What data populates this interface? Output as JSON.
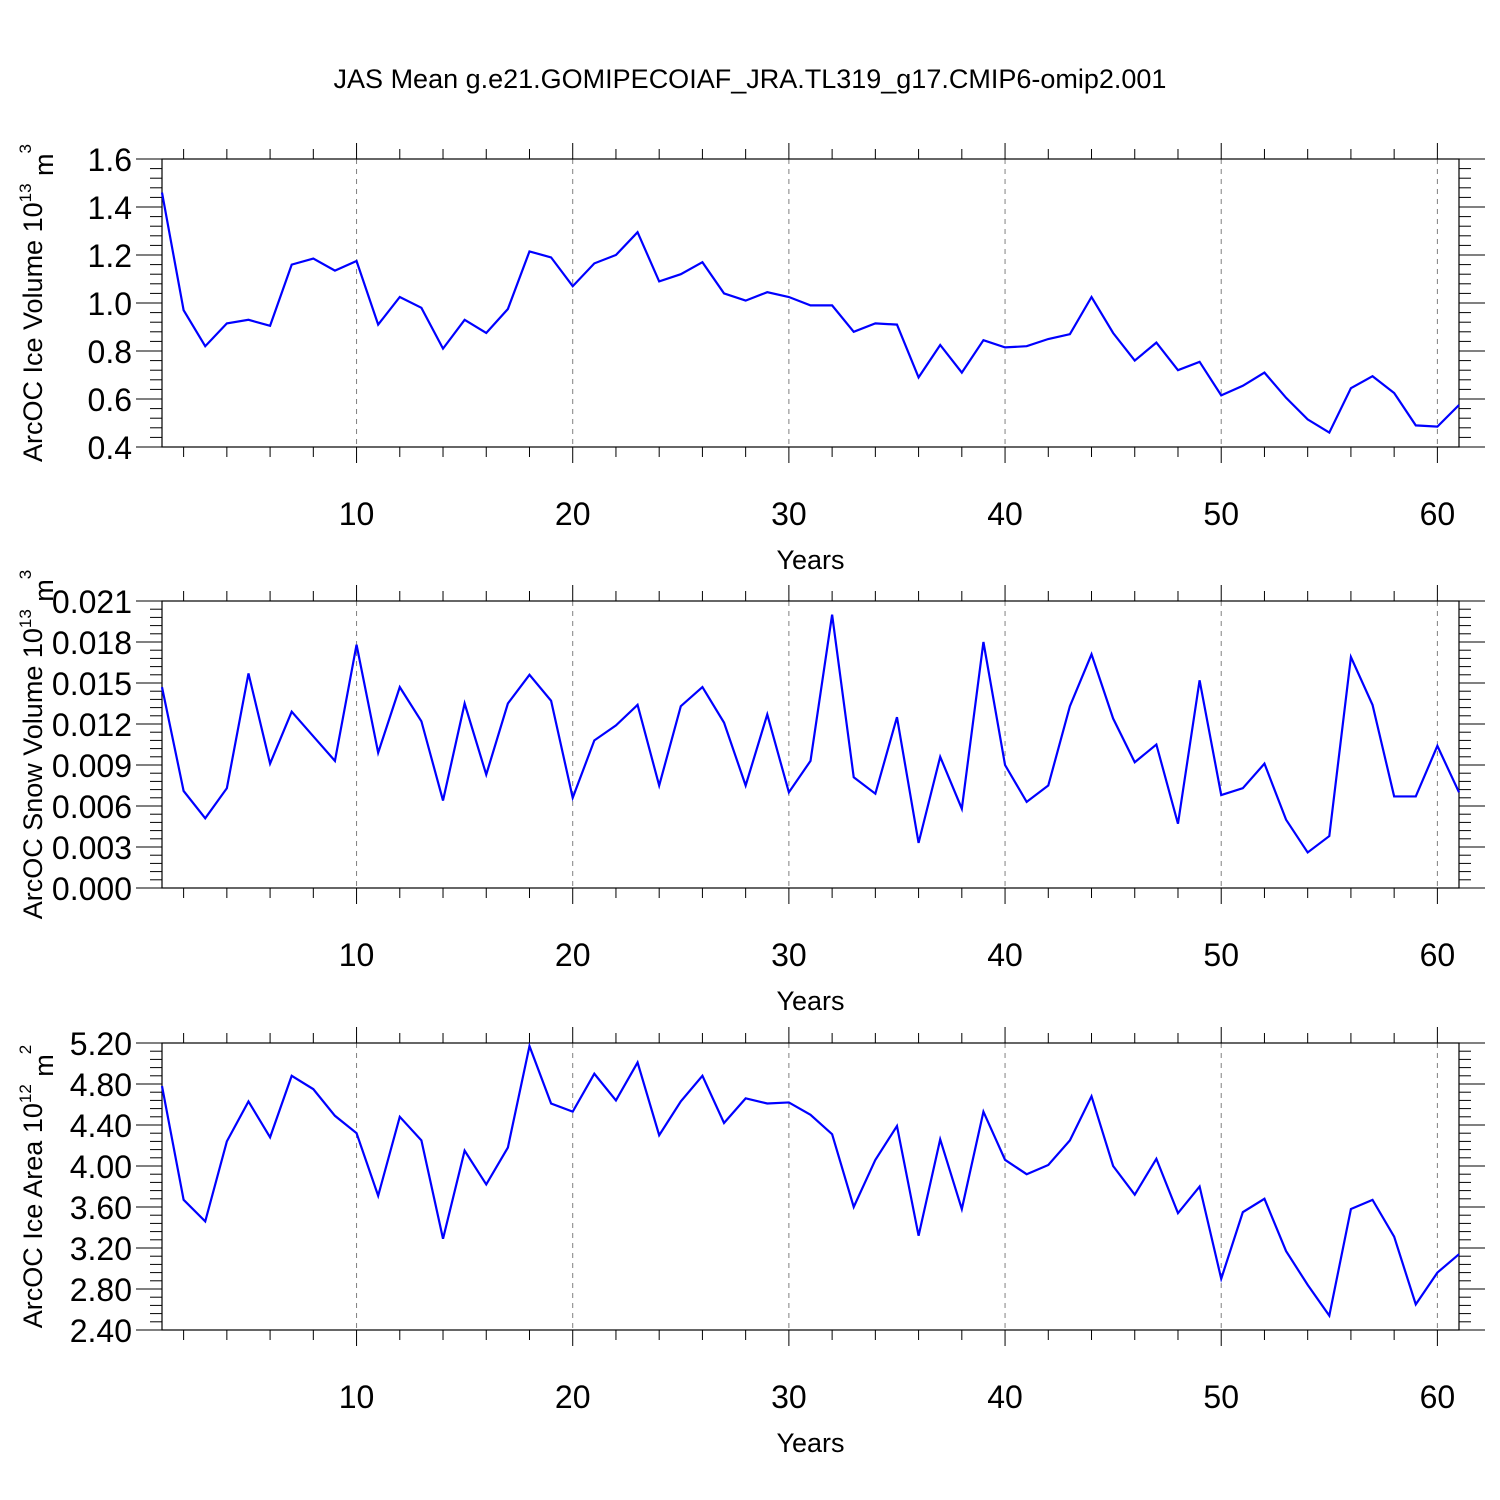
{
  "title": "JAS Mean g.e21.GOMIPECOIAF_JRA.TL319_g17.CMIP6-omip2.001",
  "colors": {
    "series": "#0000ff",
    "axes": "#000000",
    "grid": "#808080"
  },
  "chart_data": [
    {
      "type": "line",
      "title": "",
      "xlabel": "Years",
      "ylabel": "ArcOC Ice Volume",
      "ylabel_exponent": "13",
      "ylabel_unit": "m",
      "ylabel_unit_exponent": "3",
      "xlim": [
        1,
        61
      ],
      "ylim": [
        0.4,
        1.6
      ],
      "xticks": [
        10,
        20,
        30,
        40,
        50,
        60
      ],
      "xtick_labels": [
        "10",
        "20",
        "30",
        "40",
        "50",
        "60"
      ],
      "yticks": [
        0.4,
        0.6,
        0.8,
        1.0,
        1.2,
        1.4,
        1.6
      ],
      "ytick_labels": [
        "0.4",
        "0.6",
        "0.8",
        "1.0",
        "1.2",
        "1.4",
        "1.6"
      ],
      "grid": "x-dashed",
      "series": [
        {
          "x": [
            1,
            2,
            3,
            4,
            5,
            6,
            7,
            8,
            9,
            10,
            11,
            12,
            13,
            14,
            15,
            16,
            17,
            18,
            19,
            20,
            21,
            22,
            23,
            24,
            25,
            26,
            27,
            28,
            29,
            30,
            31,
            32,
            33,
            34,
            35,
            36,
            37,
            38,
            39,
            40,
            41,
            42,
            43,
            44,
            45,
            46,
            47,
            48,
            49,
            50,
            51,
            52,
            53,
            54,
            55,
            56,
            57,
            58,
            59,
            60,
            61
          ],
          "values": [
            1.46,
            0.97,
            0.82,
            0.915,
            0.93,
            0.905,
            1.16,
            1.185,
            1.135,
            1.175,
            0.91,
            1.025,
            0.98,
            0.81,
            0.93,
            0.875,
            0.975,
            1.215,
            1.19,
            1.07,
            1.165,
            1.2,
            1.295,
            1.09,
            1.12,
            1.17,
            1.04,
            1.01,
            1.045,
            1.025,
            0.99,
            0.99,
            0.88,
            0.915,
            0.91,
            0.69,
            0.825,
            0.71,
            0.845,
            0.815,
            0.82,
            0.85,
            0.87,
            1.025,
            0.875,
            0.76,
            0.835,
            0.72,
            0.755,
            0.615,
            0.655,
            0.71,
            0.605,
            0.515,
            0.46,
            0.645,
            0.695,
            0.625,
            0.49,
            0.485,
            0.575
          ]
        }
      ]
    },
    {
      "type": "line",
      "title": "",
      "xlabel": "Years",
      "ylabel": "ArcOC Snow Volume",
      "ylabel_exponent": "13",
      "ylabel_unit": "m",
      "ylabel_unit_exponent": "3",
      "xlim": [
        1,
        61
      ],
      "ylim": [
        0.0,
        0.021
      ],
      "xticks": [
        10,
        20,
        30,
        40,
        50,
        60
      ],
      "xtick_labels": [
        "10",
        "20",
        "30",
        "40",
        "50",
        "60"
      ],
      "yticks": [
        0.0,
        0.003,
        0.006,
        0.009,
        0.012,
        0.015,
        0.018,
        0.021
      ],
      "ytick_labels": [
        "0.000",
        "0.003",
        "0.006",
        "0.009",
        "0.012",
        "0.015",
        "0.018",
        "0.021"
      ],
      "grid": "x-dashed",
      "series": [
        {
          "x": [
            1,
            2,
            3,
            4,
            5,
            6,
            7,
            8,
            9,
            10,
            11,
            12,
            13,
            14,
            15,
            16,
            17,
            18,
            19,
            20,
            21,
            22,
            23,
            24,
            25,
            26,
            27,
            28,
            29,
            30,
            31,
            32,
            33,
            34,
            35,
            36,
            37,
            38,
            39,
            40,
            41,
            42,
            43,
            44,
            45,
            46,
            47,
            48,
            49,
            50,
            51,
            52,
            53,
            54,
            55,
            56,
            57,
            58,
            59,
            60,
            61
          ],
          "values": [
            0.0147,
            0.0071,
            0.0051,
            0.0073,
            0.0157,
            0.0091,
            0.0129,
            0.0111,
            0.0093,
            0.0178,
            0.0099,
            0.0147,
            0.0122,
            0.0064,
            0.0135,
            0.0083,
            0.0135,
            0.0156,
            0.0137,
            0.0066,
            0.0108,
            0.0119,
            0.0134,
            0.0075,
            0.0133,
            0.0147,
            0.0121,
            0.0075,
            0.0127,
            0.007,
            0.0093,
            0.02,
            0.0081,
            0.0069,
            0.0125,
            0.0033,
            0.0096,
            0.0058,
            0.018,
            0.009,
            0.0063,
            0.0075,
            0.0133,
            0.0171,
            0.0124,
            0.0092,
            0.0105,
            0.0047,
            0.0152,
            0.0068,
            0.0073,
            0.0091,
            0.005,
            0.0026,
            0.0038,
            0.0169,
            0.0134,
            0.0067,
            0.0067,
            0.0104,
            0.007
          ]
        }
      ]
    },
    {
      "type": "line",
      "title": "",
      "xlabel": "Years",
      "ylabel": "ArcOC Ice Area",
      "ylabel_exponent": "12",
      "ylabel_unit": "m",
      "ylabel_unit_exponent": "2",
      "xlim": [
        1,
        61
      ],
      "ylim": [
        2.4,
        5.2
      ],
      "xticks": [
        10,
        20,
        30,
        40,
        50,
        60
      ],
      "xtick_labels": [
        "10",
        "20",
        "30",
        "40",
        "50",
        "60"
      ],
      "yticks": [
        2.4,
        2.8,
        3.2,
        3.6,
        4.0,
        4.4,
        4.8,
        5.2
      ],
      "ytick_labels": [
        "2.40",
        "2.80",
        "3.20",
        "3.60",
        "4.00",
        "4.40",
        "4.80",
        "5.20"
      ],
      "grid": "x-dashed",
      "series": [
        {
          "x": [
            1,
            2,
            3,
            4,
            5,
            6,
            7,
            8,
            9,
            10,
            11,
            12,
            13,
            14,
            15,
            16,
            17,
            18,
            19,
            20,
            21,
            22,
            23,
            24,
            25,
            26,
            27,
            28,
            29,
            30,
            31,
            32,
            33,
            34,
            35,
            36,
            37,
            38,
            39,
            40,
            41,
            42,
            43,
            44,
            45,
            46,
            47,
            48,
            49,
            50,
            51,
            52,
            53,
            54,
            55,
            56,
            57,
            58,
            59,
            60,
            61
          ],
          "values": [
            4.78,
            3.67,
            3.46,
            4.24,
            4.63,
            4.28,
            4.88,
            4.75,
            4.49,
            4.32,
            3.71,
            4.48,
            4.25,
            3.29,
            4.15,
            3.82,
            4.18,
            5.17,
            4.61,
            4.53,
            4.9,
            4.64,
            5.01,
            4.3,
            4.63,
            4.88,
            4.42,
            4.66,
            4.61,
            4.62,
            4.5,
            4.31,
            3.6,
            4.06,
            4.39,
            3.32,
            4.26,
            3.58,
            4.53,
            4.06,
            3.92,
            4.01,
            4.25,
            4.68,
            4.0,
            3.72,
            4.07,
            3.54,
            3.8,
            2.9,
            3.55,
            3.68,
            3.17,
            2.84,
            2.54,
            3.58,
            3.67,
            3.31,
            2.65,
            2.96,
            3.14
          ]
        }
      ]
    }
  ]
}
